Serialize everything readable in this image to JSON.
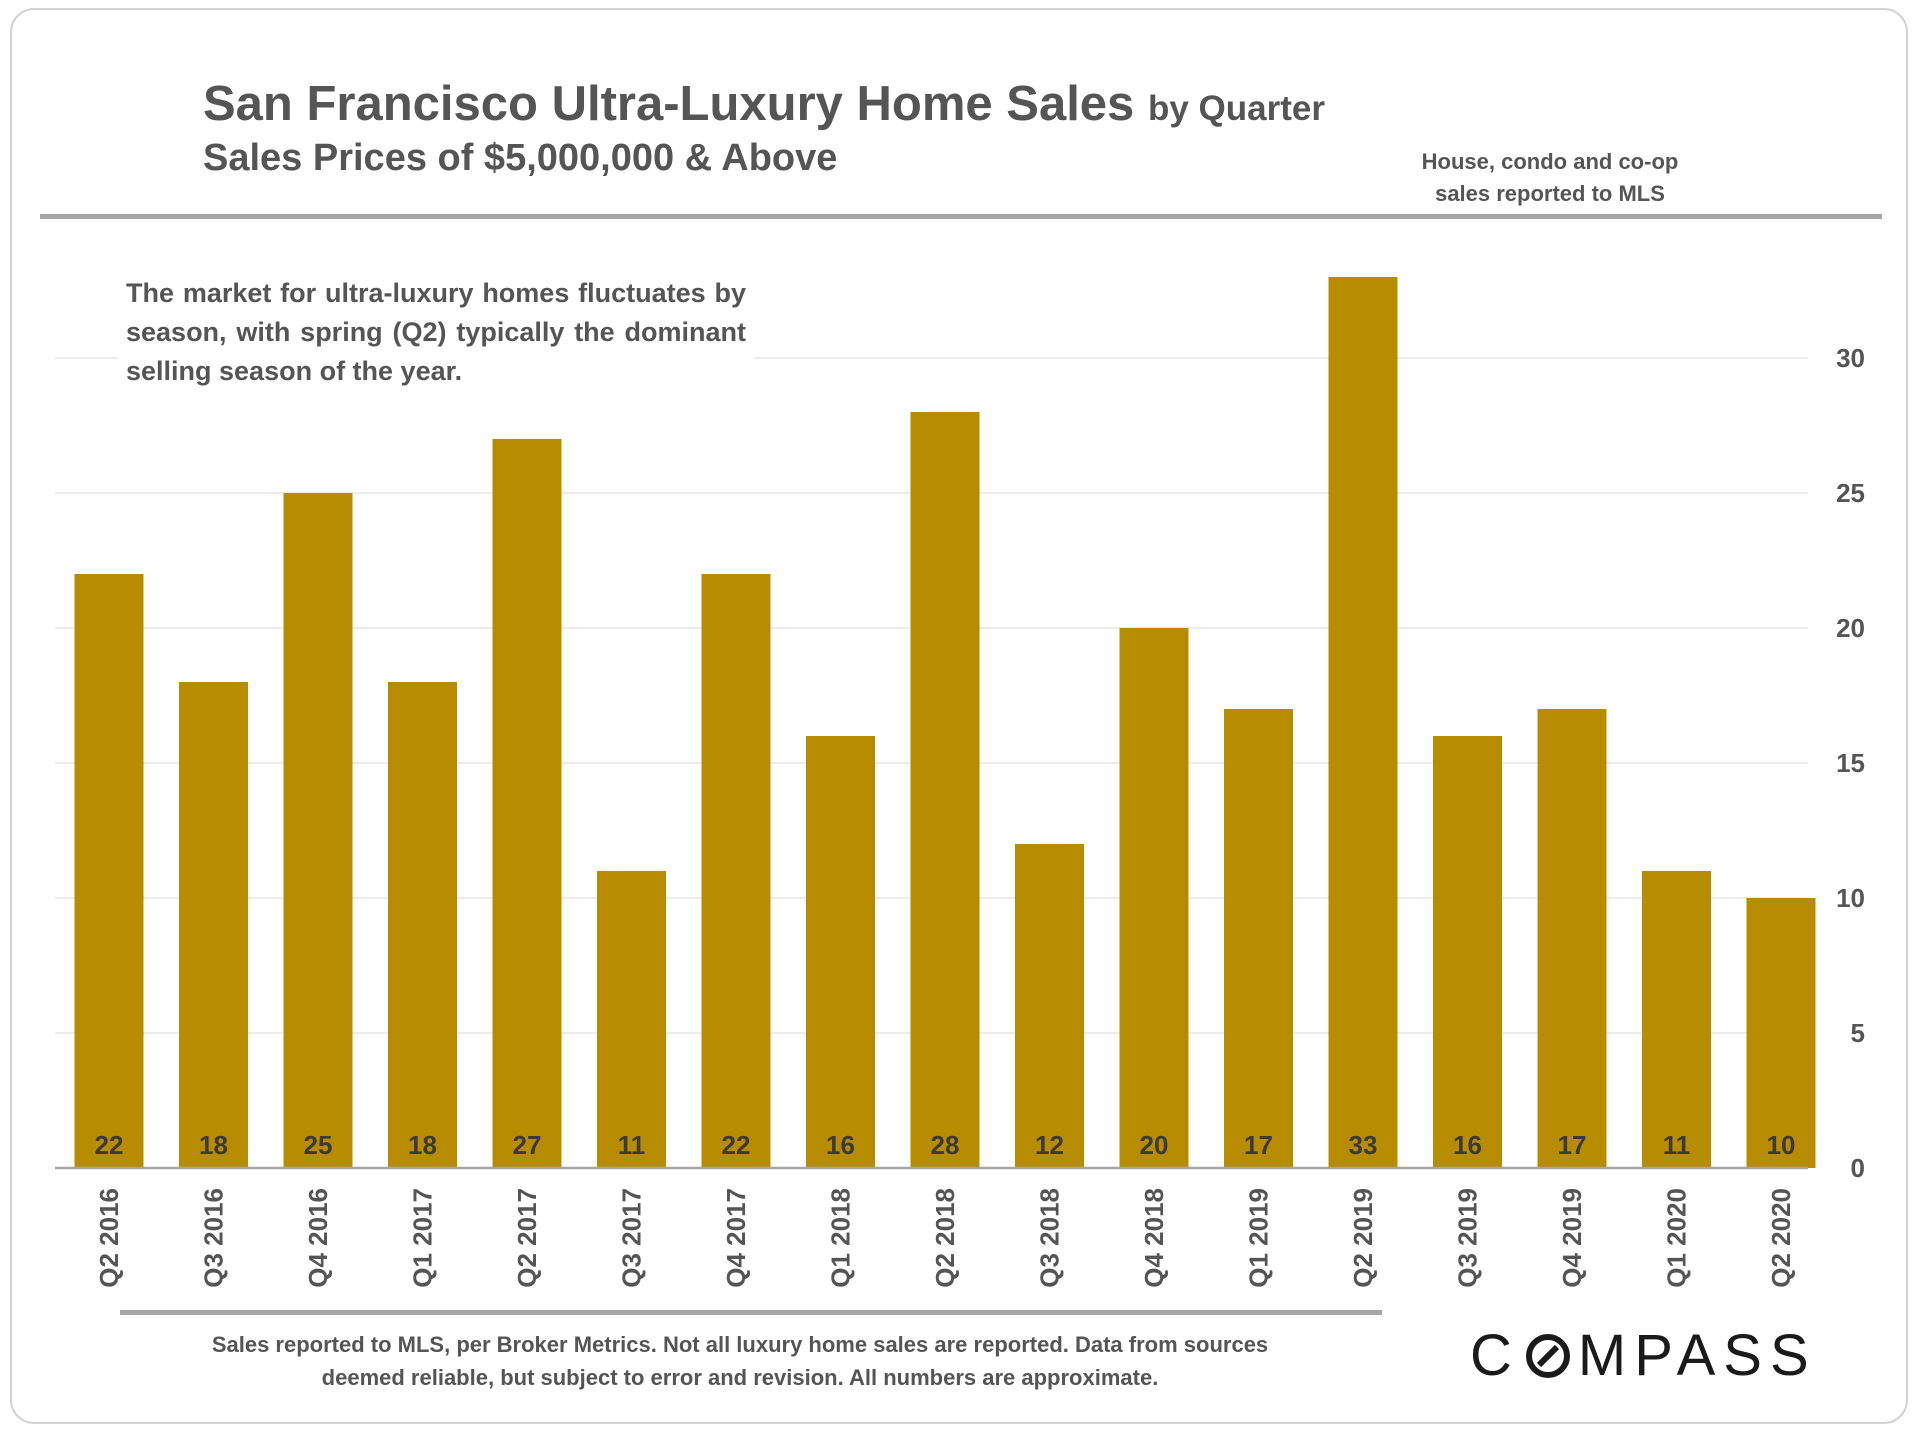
{
  "chart_data": {
    "type": "bar",
    "title": "San Francisco Ultra-Luxury Home Sales",
    "title_suffix": "by Quarter",
    "subtitle": "Sales Prices of $5,000,000 & Above",
    "categories": [
      "Q2 2016",
      "Q3 2016",
      "Q4 2016",
      "Q1 2017",
      "Q2 2017",
      "Q3 2017",
      "Q4 2017",
      "Q1 2018",
      "Q2 2018",
      "Q3 2018",
      "Q4 2018",
      "Q1 2019",
      "Q2 2019",
      "Q3 2019",
      "Q4 2019",
      "Q1 2020",
      "Q2 2020"
    ],
    "values": [
      22,
      18,
      25,
      18,
      27,
      11,
      22,
      16,
      28,
      12,
      20,
      17,
      33,
      16,
      17,
      11,
      10
    ],
    "ylim": [
      0,
      34
    ],
    "yticks": [
      0,
      5,
      10,
      15,
      20,
      25,
      30
    ],
    "y_axis_position": "right",
    "xlabel": "",
    "ylabel": "",
    "grid": true,
    "bar_color": "#b88c00",
    "data_label_color": "#3a3a3a",
    "tick_label_color": "#555555",
    "grid_color": "#e6e6e6",
    "axis_color": "#a6a6a6"
  },
  "header": {
    "source_note_line1": "House, condo and co-op",
    "source_note_line2": "sales reported to MLS"
  },
  "annotation": {
    "text": "The market for ultra-luxury homes fluctuates by season, with spring (Q2) typically the dominant selling season of the year."
  },
  "footer": {
    "note_line1": "Sales reported to MLS, per Broker Metrics. Not all luxury home sales are reported. Data from sources",
    "note_line2": "deemed reliable, but subject to error and revision. All numbers are approximate.",
    "logo_part1": "C",
    "logo_part2": "MPASS"
  }
}
